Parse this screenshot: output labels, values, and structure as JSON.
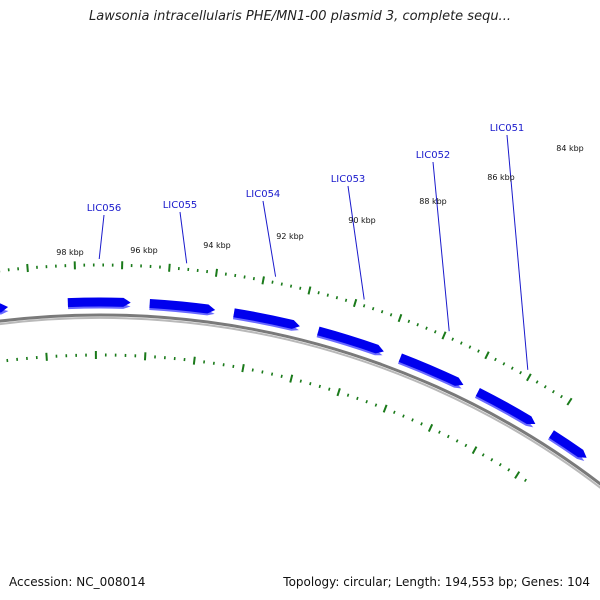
{
  "title": "Lawsonia intracellularis PHE/MN1-00 plasmid 3, complete sequ...",
  "footer": {
    "accession": "Accession: NC_008014",
    "summary": "Topology: circular; Length: 194,553 bp; Genes: 104"
  },
  "colors": {
    "gene": "#0000ee",
    "gene_shadow": "#6a6aff",
    "backbone": "#7a7a7a",
    "ticks": "#1a7a1a",
    "label_line": "#1a1acc"
  },
  "tick_labels": [
    "98 kbp",
    "96 kbp",
    "94 kbp",
    "92 kbp",
    "90 kbp",
    "88 kbp",
    "86 kbp",
    "84 kbp"
  ],
  "genes": [
    {
      "name": ""
    },
    {
      "name": "LIC056"
    },
    {
      "name": "LIC055"
    },
    {
      "name": "LIC054"
    },
    {
      "name": "LIC053"
    },
    {
      "name": "LIC052"
    },
    {
      "name": "LIC051"
    },
    {
      "name": ""
    }
  ]
}
